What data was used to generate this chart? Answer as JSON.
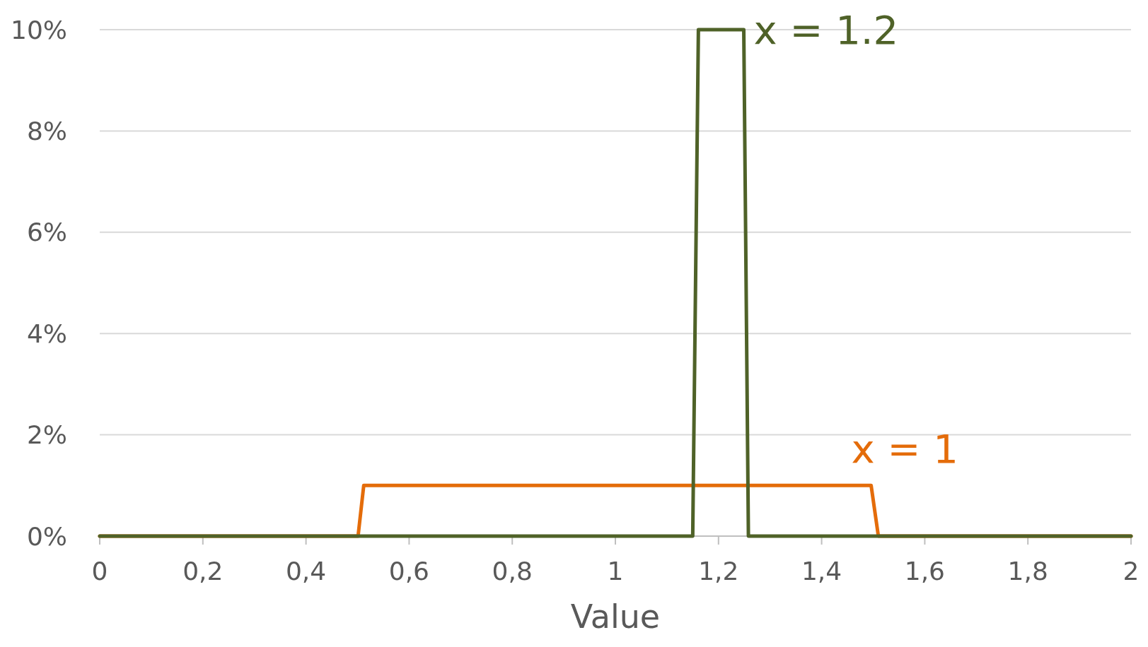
{
  "chart_data": {
    "type": "line",
    "xlabel": "Value",
    "series": [
      {
        "name": "x = 1",
        "color": "#e46c0a",
        "x": [
          0,
          0.501,
          0.512,
          1.496,
          1.51,
          2
        ],
        "values": [
          0,
          0,
          1,
          1,
          0,
          0
        ]
      },
      {
        "name": "x = 1.2",
        "color": "#4f6228",
        "x": [
          0,
          1.15,
          1.161,
          1.249,
          1.258,
          2
        ],
        "values": [
          0,
          0,
          10,
          10,
          0,
          0
        ]
      }
    ],
    "xlim": [
      0,
      2
    ],
    "xticks": [
      0,
      {
        "value": 0.2,
        "label": "0,2"
      },
      {
        "value": 0.4,
        "label": "0,4"
      },
      {
        "value": 0.6,
        "label": "0,6"
      },
      {
        "value": 0.8,
        "label": "0,8"
      },
      1,
      {
        "value": 1.2,
        "label": "1,2"
      },
      {
        "value": 1.4,
        "label": "1,4"
      },
      {
        "value": 1.6,
        "label": "1,6"
      },
      {
        "value": 1.8,
        "label": "1,8"
      },
      2
    ],
    "ylim": [
      0,
      10
    ],
    "yticks": [
      {
        "value": 0,
        "label": "0%"
      },
      {
        "value": 2,
        "label": "2%"
      },
      {
        "value": 4,
        "label": "4%"
      },
      {
        "value": 6,
        "label": "6%"
      },
      {
        "value": 8,
        "label": "8%"
      },
      {
        "value": 10,
        "label": "10%"
      }
    ],
    "grid": "y",
    "line_style": "solid",
    "marker": "none"
  }
}
